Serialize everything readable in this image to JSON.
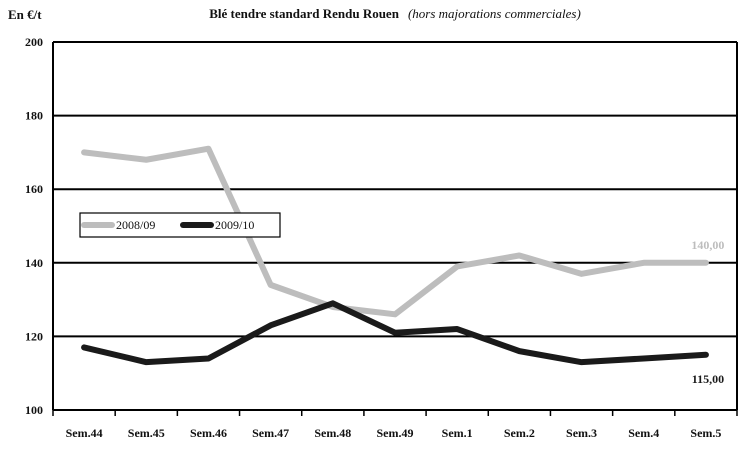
{
  "chart_data": {
    "type": "line",
    "title": "Blé tendre standard Rendu Rouen",
    "subtitle": "(hors majorations commerciales)",
    "ylabel": "En €/t",
    "xlabel": "",
    "ylim": [
      100,
      200
    ],
    "yticks": [
      100,
      120,
      140,
      160,
      180,
      200
    ],
    "categories": [
      "Sem.44",
      "Sem.45",
      "Sem.46",
      "Sem.47",
      "Sem.48",
      "Sem.49",
      "Sem.1",
      "Sem.2",
      "Sem.3",
      "Sem.4",
      "Sem.5"
    ],
    "grid": true,
    "legend_position": "left",
    "series": [
      {
        "name": "2008/09",
        "color": "#bdbdbd",
        "values": [
          170,
          168,
          171,
          134,
          128,
          126,
          139,
          142,
          137,
          140,
          140
        ]
      },
      {
        "name": "2009/10",
        "color": "#1a1a1a",
        "values": [
          117,
          113,
          114,
          123,
          129,
          121,
          122,
          116,
          113,
          114,
          115
        ]
      }
    ],
    "annotations": [
      {
        "series": 0,
        "index": 10,
        "text": "140,00",
        "color": "#bdbdbd"
      },
      {
        "series": 1,
        "index": 10,
        "text": "115,00",
        "color": "#1a1a1a"
      }
    ]
  }
}
